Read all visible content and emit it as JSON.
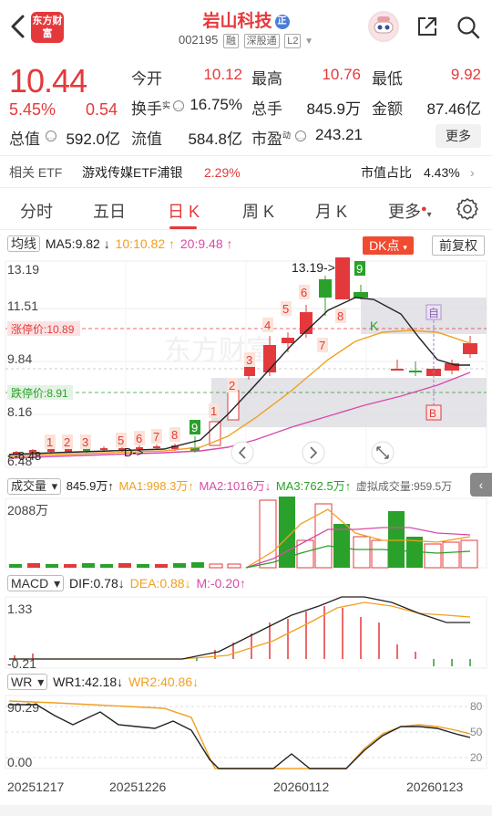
{
  "header": {
    "logo_text": "东方财富",
    "title": "岩山科技",
    "title_badge": "正",
    "code": "002195",
    "tags": [
      "融",
      "深股通",
      "L2"
    ]
  },
  "quote": {
    "price": "10.44",
    "change_pct": "5.45%",
    "change": "0.54",
    "rows": [
      [
        {
          "label": "今开",
          "value": "10.12",
          "color": "red"
        },
        {
          "label": "最高",
          "value": "10.76",
          "color": "red"
        },
        {
          "label": "最低",
          "value": "9.92",
          "color": "red"
        }
      ],
      [
        {
          "label": "换手",
          "value": "16.75%",
          "color": "dark",
          "sup": "实"
        },
        {
          "label": "总手",
          "value": "845.9万",
          "color": "dark"
        },
        {
          "label": "金额",
          "value": "87.46亿",
          "color": "dark"
        }
      ],
      [
        {
          "label": "总值",
          "value": "592.0亿",
          "color": "dark"
        },
        {
          "label": "流值",
          "value": "584.8亿",
          "color": "dark"
        },
        {
          "label": "市盈",
          "value": "243.21",
          "color": "dark",
          "sup": "动"
        }
      ]
    ],
    "more_label": "更多"
  },
  "etf": {
    "label": "相关 ETF",
    "name": "游戏传媒ETF浦银",
    "pct": "2.29%",
    "share_label": "市值占比",
    "share_value": "4.43%"
  },
  "tabs": [
    {
      "label": "分时",
      "active": false
    },
    {
      "label": "五日",
      "active": false
    },
    {
      "label": "日 K",
      "active": true
    },
    {
      "label": "周 K",
      "active": false
    },
    {
      "label": "月 K",
      "active": false
    },
    {
      "label": "更多",
      "active": false
    }
  ],
  "ma_bar": {
    "selector": "均线",
    "ma5": "MA5:9.82 ↓",
    "ma10": "10:10.82 ↑",
    "ma20": "20:9.48 ↑",
    "dk_label": "DK点",
    "adjust_label": "前复权"
  },
  "kline": {
    "axis_labels": [
      "13.19",
      "11.51",
      "9.84",
      "8.16",
      "6.48"
    ],
    "limit_up": "涨停价:10.89",
    "limit_down": "跌停价:8.91",
    "high_marker": "13.19->",
    "low_marker": "<-6.48",
    "d_marker": "D->",
    "k_marker": "K",
    "zi_marker": "自",
    "b_marker": "B",
    "watermark": "东方财富"
  },
  "vol_bar": {
    "selector": "成交量",
    "vol": "845.9万↑",
    "ma1": "MA1:998.3万↑",
    "ma2": "MA2:1016万↓",
    "ma3": "MA3:762.5万↑",
    "virtual": "虚拟成交量:959.5万",
    "axis_top": "2088万"
  },
  "macd_bar": {
    "selector": "MACD",
    "dif": "DIF:0.78↓",
    "dea": "DEA:0.88↓",
    "m": "M:-0.20↑",
    "axis_top": "1.33",
    "axis_bottom": "-0.21"
  },
  "wr_bar": {
    "selector": "WR",
    "wr1": "WR1:42.18↓",
    "wr2": "WR2:40.86↓",
    "axis_top": "90.29",
    "axis_bottom": "0.00",
    "right_labels": [
      "80",
      "50",
      "20"
    ]
  },
  "dates": [
    "20251217",
    "20251226",
    "20260112",
    "20260123"
  ],
  "colors": {
    "up": "#e4393c",
    "down": "#2aa12a",
    "ma10": "#f0a020",
    "ma20": "#d94aa8"
  }
}
